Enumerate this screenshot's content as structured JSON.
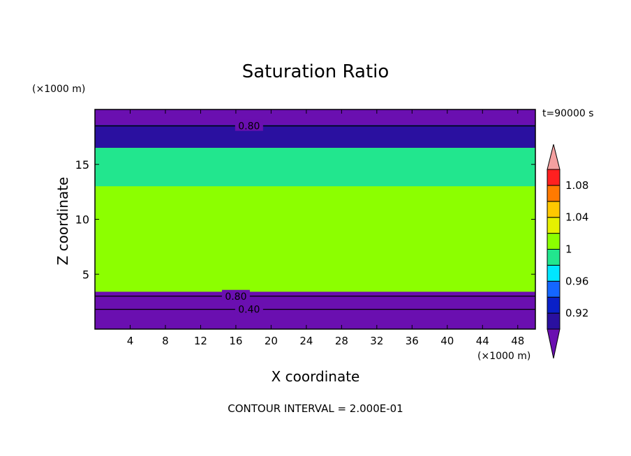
{
  "chart_data": {
    "type": "heatmap",
    "title": "Saturation Ratio",
    "time_label": "t=90000 s",
    "xlabel": "X coordinate",
    "ylabel": "Z coordinate",
    "x_unit": "(×1000 m)",
    "y_unit": "(×1000 m)",
    "xlim": [
      0,
      50
    ],
    "ylim": [
      0,
      20
    ],
    "x_ticks": [
      4,
      8,
      12,
      16,
      20,
      24,
      28,
      32,
      36,
      40,
      44,
      48
    ],
    "y_ticks": [
      5,
      10,
      15
    ],
    "colorbar": {
      "levels": [
        0.9,
        0.92,
        0.94,
        0.96,
        0.98,
        1.0,
        1.02,
        1.04,
        1.06,
        1.08,
        1.1
      ],
      "tick_labels": [
        "0.92",
        "0.96",
        "1",
        "1.04",
        "1.08"
      ],
      "colors": [
        "#6a0fb0",
        "#2a10a0",
        "#0a20c8",
        "#1466ff",
        "#00e6ff",
        "#22e68e",
        "#8cff00",
        "#e6f000",
        "#ffc800",
        "#ff7a00",
        "#ff2020",
        "#f4a0a0"
      ],
      "extends": "both"
    },
    "layers": [
      {
        "z_from": 18.6,
        "z_to": 20.0,
        "value": 0.8
      },
      {
        "z_from": 16.5,
        "z_to": 18.6,
        "value": 0.9
      },
      {
        "z_from": 13.0,
        "z_to": 16.5,
        "value": 0.98
      },
      {
        "z_from": 3.4,
        "z_to": 13.0,
        "value": 1.0
      },
      {
        "z_from": 0.0,
        "z_to": 3.4,
        "value": 0.4
      }
    ],
    "contour_labels": [
      {
        "text": "0.80",
        "x": 17.5,
        "z": 18.5
      },
      {
        "text": "0.80",
        "x": 16.0,
        "z": 3.0
      },
      {
        "text": "0.40",
        "x": 17.5,
        "z": 1.8
      }
    ],
    "footer": "CONTOUR INTERVAL = 2.000E-01"
  }
}
